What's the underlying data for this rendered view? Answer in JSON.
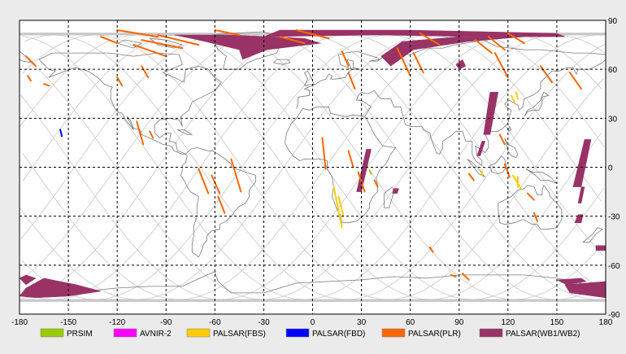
{
  "map": {
    "x_ticks": [
      -180,
      -150,
      -120,
      -90,
      -60,
      -30,
      0,
      30,
      60,
      90,
      120,
      150,
      180
    ],
    "y_ticks": [
      90,
      60,
      30,
      0,
      -30,
      -60,
      -90
    ],
    "x_range": [
      -180,
      180
    ],
    "y_range": [
      -90,
      90
    ],
    "grid": "dashed"
  },
  "legend": [
    {
      "label": "PRSIM",
      "color": "#99cc00"
    },
    {
      "label": "AVNIR-2",
      "color": "#ff00ff"
    },
    {
      "label": "PALSAR(FBS)",
      "color": "#ffcc00"
    },
    {
      "label": "PALSAR(FBD)",
      "color": "#0000ff"
    },
    {
      "label": "PALSAR(PLR)",
      "color": "#ff6600"
    },
    {
      "label": "PALSAR(WB1/WB2)",
      "color": "#993366"
    }
  ],
  "colors": {
    "orbit": "#c8c8c8",
    "coast": "#7a7a7a",
    "frame": "#000000",
    "background": "#ffffff"
  },
  "wb_swaths": [
    {
      "pts": [
        [
          -85,
          81
        ],
        [
          -50,
          81
        ],
        [
          -5,
          79
        ],
        [
          5,
          76
        ],
        [
          -28,
          72
        ],
        [
          -43,
          66
        ],
        [
          -45,
          72
        ],
        [
          -70,
          78
        ]
      ]
    },
    {
      "pts": [
        [
          -30,
          80
        ],
        [
          40,
          81
        ],
        [
          100,
          80
        ],
        [
          155,
          80
        ],
        [
          150,
          82
        ],
        [
          60,
          84
        ],
        [
          -20,
          84
        ]
      ]
    },
    {
      "pts": [
        [
          42,
          68
        ],
        [
          55,
          77
        ],
        [
          90,
          80
        ],
        [
          130,
          80
        ],
        [
          95,
          77
        ],
        [
          62,
          72
        ],
        [
          48,
          62
        ]
      ]
    },
    {
      "pts": [
        [
          88,
          63
        ],
        [
          92,
          66
        ],
        [
          94,
          62
        ],
        [
          90,
          60
        ]
      ]
    },
    {
      "pts": [
        [
          109,
          46
        ],
        [
          114,
          46
        ],
        [
          109,
          20
        ],
        [
          105,
          20
        ]
      ]
    },
    {
      "pts": [
        [
          104,
          16
        ],
        [
          106,
          16
        ],
        [
          103,
          7
        ],
        [
          101,
          7
        ]
      ]
    },
    {
      "pts": [
        [
          33,
          11
        ],
        [
          36,
          11
        ],
        [
          30,
          -15
        ],
        [
          27,
          -15
        ]
      ]
    },
    {
      "pts": [
        [
          50,
          -13
        ],
        [
          53,
          -13
        ],
        [
          52,
          -16
        ],
        [
          49,
          -16
        ]
      ]
    },
    {
      "pts": [
        [
          167,
          17
        ],
        [
          171,
          17
        ],
        [
          165,
          -12
        ],
        [
          160,
          -12
        ]
      ]
    },
    {
      "pts": [
        [
          165,
          -12
        ],
        [
          167,
          -12
        ],
        [
          165,
          -22
        ],
        [
          163,
          -22
        ]
      ]
    },
    {
      "pts": [
        [
          163,
          -29
        ],
        [
          166,
          -29
        ],
        [
          165,
          -34
        ],
        [
          161,
          -34
        ]
      ]
    },
    {
      "pts": [
        [
          174,
          -48
        ],
        [
          180,
          -48
        ],
        [
          180,
          -51
        ],
        [
          174,
          -51
        ]
      ]
    },
    {
      "pts": [
        [
          -180,
          -68
        ],
        [
          -176,
          -66
        ],
        [
          -170,
          -68
        ],
        [
          -176,
          -72
        ]
      ]
    },
    {
      "pts": [
        [
          -176,
          -74
        ],
        [
          -165,
          -68
        ],
        [
          -145,
          -72
        ],
        [
          -130,
          -76
        ],
        [
          -150,
          -79
        ],
        [
          -170,
          -80
        ],
        [
          -180,
          -79
        ]
      ]
    },
    {
      "pts": [
        [
          150,
          -69
        ],
        [
          165,
          -68
        ],
        [
          168,
          -70
        ],
        [
          156,
          -72
        ]
      ]
    },
    {
      "pts": [
        [
          155,
          -72
        ],
        [
          180,
          -70
        ],
        [
          180,
          -80
        ],
        [
          158,
          -77
        ]
      ]
    }
  ],
  "strips": [
    {
      "c": "#ff6600",
      "pts": [
        [
          -176,
          68
        ],
        [
          -170,
          62
        ]
      ]
    },
    {
      "c": "#ff6600",
      "pts": [
        [
          -175,
          56
        ],
        [
          -173,
          53
        ]
      ]
    },
    {
      "c": "#ff6600",
      "pts": [
        [
          -165,
          51
        ],
        [
          -162,
          50
        ]
      ]
    },
    {
      "c": "#ff6600",
      "pts": [
        [
          -110,
          75
        ],
        [
          -90,
          68
        ]
      ]
    },
    {
      "c": "#ff6600",
      "pts": [
        [
          -105,
          78
        ],
        [
          -80,
          73
        ]
      ]
    },
    {
      "c": "#ff6600",
      "pts": [
        [
          -95,
          81
        ],
        [
          -70,
          75
        ]
      ]
    },
    {
      "c": "#ff6600",
      "pts": [
        [
          -120,
          84
        ],
        [
          -95,
          80
        ]
      ]
    },
    {
      "c": "#ff6600",
      "pts": [
        [
          -130,
          80
        ],
        [
          -120,
          76
        ]
      ]
    },
    {
      "c": "#ff6600",
      "pts": [
        [
          -105,
          62
        ],
        [
          -101,
          55
        ]
      ]
    },
    {
      "c": "#ff6600",
      "pts": [
        [
          -120,
          55
        ],
        [
          -117,
          50
        ]
      ]
    },
    {
      "c": "#ff6600",
      "pts": [
        [
          -60,
          84
        ],
        [
          -45,
          81
        ]
      ]
    },
    {
      "c": "#ff6600",
      "pts": [
        [
          -20,
          80
        ],
        [
          -5,
          76
        ]
      ]
    },
    {
      "c": "#ff6600",
      "pts": [
        [
          -10,
          84
        ],
        [
          10,
          79
        ]
      ]
    },
    {
      "c": "#ff6600",
      "pts": [
        [
          18,
          71
        ],
        [
          22,
          62
        ]
      ]
    },
    {
      "c": "#ff6600",
      "pts": [
        [
          22,
          58
        ],
        [
          26,
          48
        ]
      ]
    },
    {
      "c": "#ff6600",
      "pts": [
        [
          52,
          73
        ],
        [
          60,
          56
        ]
      ]
    },
    {
      "c": "#ff6600",
      "pts": [
        [
          62,
          70
        ],
        [
          68,
          58
        ]
      ]
    },
    {
      "c": "#ff6600",
      "pts": [
        [
          66,
          82
        ],
        [
          78,
          75
        ]
      ]
    },
    {
      "c": "#ff6600",
      "pts": [
        [
          100,
          78
        ],
        [
          110,
          70
        ]
      ]
    },
    {
      "c": "#ff6600",
      "pts": [
        [
          108,
          80
        ],
        [
          118,
          72
        ]
      ]
    },
    {
      "c": "#ff6600",
      "pts": [
        [
          120,
          82
        ],
        [
          130,
          76
        ]
      ]
    },
    {
      "c": "#ff6600",
      "pts": [
        [
          112,
          70
        ],
        [
          120,
          55
        ]
      ]
    },
    {
      "c": "#ff6600",
      "pts": [
        [
          140,
          62
        ],
        [
          147,
          52
        ]
      ]
    },
    {
      "c": "#ff6600",
      "pts": [
        [
          158,
          58
        ],
        [
          165,
          48
        ]
      ]
    },
    {
      "c": "#ff6600",
      "pts": [
        [
          -108,
          28
        ],
        [
          -104,
          14
        ]
      ]
    },
    {
      "c": "#ff6600",
      "pts": [
        [
          -100,
          22
        ],
        [
          -98,
          18
        ]
      ]
    },
    {
      "c": "#ff6600",
      "pts": [
        [
          -70,
          -1
        ],
        [
          -64,
          -16
        ]
      ]
    },
    {
      "c": "#ff6600",
      "pts": [
        [
          -62,
          -5
        ],
        [
          -57,
          -16
        ]
      ]
    },
    {
      "c": "#ff6600",
      "pts": [
        [
          -50,
          5
        ],
        [
          -44,
          -15
        ]
      ]
    },
    {
      "c": "#ff6600",
      "pts": [
        [
          -58,
          -18
        ],
        [
          -54,
          -28
        ]
      ]
    },
    {
      "c": "#ff6600",
      "pts": [
        [
          6,
          18
        ],
        [
          8,
          -1
        ]
      ]
    },
    {
      "c": "#ff6600",
      "pts": [
        [
          22,
          10
        ],
        [
          25,
          0
        ]
      ]
    },
    {
      "c": "#ff6600",
      "pts": [
        [
          28,
          -3
        ],
        [
          32,
          -15
        ]
      ]
    },
    {
      "c": "#ff6600",
      "pts": [
        [
          38,
          -8
        ],
        [
          40,
          -12
        ]
      ]
    },
    {
      "c": "#ff6600",
      "pts": [
        [
          115,
          20
        ],
        [
          118,
          14
        ]
      ]
    },
    {
      "c": "#ff6600",
      "pts": [
        [
          118,
          2
        ],
        [
          121,
          -6
        ]
      ]
    },
    {
      "c": "#ff6600",
      "pts": [
        [
          132,
          -16
        ],
        [
          136,
          -20
        ]
      ]
    },
    {
      "c": "#ff6600",
      "pts": [
        [
          136,
          -28
        ],
        [
          138,
          -33
        ]
      ]
    },
    {
      "c": "#ff6600",
      "pts": [
        [
          72,
          -49
        ],
        [
          74,
          -52
        ]
      ]
    },
    {
      "c": "#ff6600",
      "pts": [
        [
          92,
          -65
        ],
        [
          96,
          -69
        ]
      ]
    },
    {
      "c": "#ff6600",
      "pts": [
        [
          85,
          -66
        ],
        [
          88,
          -67
        ]
      ]
    },
    {
      "c": "#ff6600",
      "pts": [
        [
          96,
          -4
        ],
        [
          99,
          -8
        ]
      ]
    },
    {
      "c": "#ffcc00",
      "pts": [
        [
          13,
          -12
        ],
        [
          18,
          -37
        ]
      ]
    },
    {
      "c": "#ffcc00",
      "pts": [
        [
          16,
          -18
        ],
        [
          19,
          -30
        ]
      ]
    },
    {
      "c": "#ffcc00",
      "pts": [
        [
          104,
          -2
        ],
        [
          104,
          -5
        ]
      ]
    },
    {
      "c": "#ffcc00",
      "pts": [
        [
          123,
          -5
        ],
        [
          128,
          -13
        ]
      ]
    },
    {
      "c": "#ffcc00",
      "pts": [
        [
          126,
          -6
        ],
        [
          126,
          -12
        ]
      ]
    },
    {
      "c": "#ffcc00",
      "pts": [
        [
          122,
          44
        ],
        [
          124,
          40
        ]
      ]
    },
    {
      "c": "#ffcc00",
      "pts": [
        [
          125,
          46
        ],
        [
          126,
          42
        ]
      ]
    },
    {
      "c": "#0000ff",
      "pts": [
        [
          -155,
          23
        ],
        [
          -154,
          19
        ]
      ]
    },
    {
      "c": "#99cc00",
      "pts": [
        [
          35,
          -2
        ],
        [
          36,
          -4
        ]
      ]
    }
  ],
  "orbit_count": 14
}
